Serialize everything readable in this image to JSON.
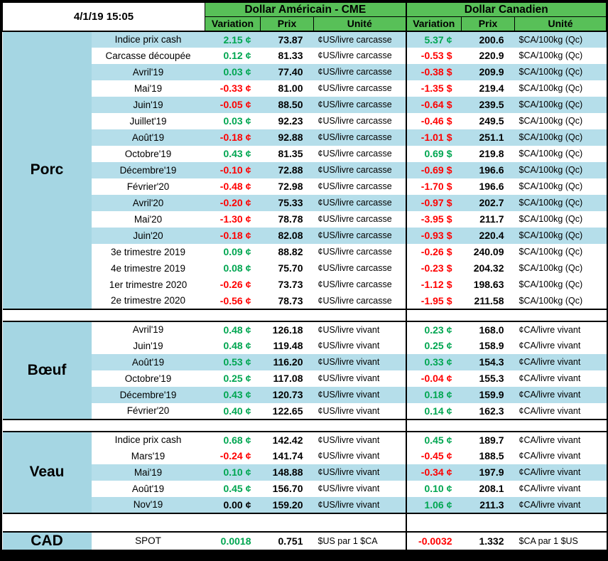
{
  "meta": {
    "timestamp": "4/1/19 15:05"
  },
  "header": {
    "us_title": "Dollar Américain - CME",
    "ca_title": "Dollar Canadien",
    "col_variation": "Variation",
    "col_prix": "Prix",
    "col_unite": "Unité"
  },
  "colors": {
    "header_green": "#58C058",
    "section_blue": "#A5D6E3",
    "stripe_blue": "#B5DEEA",
    "positive_green": "#00A651",
    "negative_red": "#FF0000"
  },
  "sections": [
    {
      "name": "Porc",
      "rows": [
        {
          "label": "Indice prix cash",
          "us_var": "2.15",
          "us_sym": "¢",
          "us_prix": "73.87",
          "us_unit": "¢US/livre carcasse",
          "ca_var": "5.37",
          "ca_sym": "¢",
          "ca_prix": "200.6",
          "ca_unit": "$CA/100kg (Qc)",
          "shaded": true
        },
        {
          "label": "Carcasse découpée",
          "us_var": "0.12",
          "us_sym": "¢",
          "us_prix": "81.33",
          "us_unit": "¢US/livre carcasse",
          "ca_var": "-0.53",
          "ca_sym": "$",
          "ca_prix": "220.9",
          "ca_unit": "$CA/100kg (Qc)",
          "shaded": false
        },
        {
          "label": "Avril'19",
          "us_var": "0.03",
          "us_sym": "¢",
          "us_prix": "77.40",
          "us_unit": "¢US/livre carcasse",
          "ca_var": "-0.38",
          "ca_sym": "$",
          "ca_prix": "209.9",
          "ca_unit": "$CA/100kg (Qc)",
          "shaded": true
        },
        {
          "label": "Mai'19",
          "us_var": "-0.33",
          "us_sym": "¢",
          "us_prix": "81.00",
          "us_unit": "¢US/livre carcasse",
          "ca_var": "-1.35",
          "ca_sym": "$",
          "ca_prix": "219.4",
          "ca_unit": "$CA/100kg (Qc)",
          "shaded": false
        },
        {
          "label": "Juin'19",
          "us_var": "-0.05",
          "us_sym": "¢",
          "us_prix": "88.50",
          "us_unit": "¢US/livre carcasse",
          "ca_var": "-0.64",
          "ca_sym": "$",
          "ca_prix": "239.5",
          "ca_unit": "$CA/100kg (Qc)",
          "shaded": true
        },
        {
          "label": "Juillet'19",
          "us_var": "0.03",
          "us_sym": "¢",
          "us_prix": "92.23",
          "us_unit": "¢US/livre carcasse",
          "ca_var": "-0.46",
          "ca_sym": "$",
          "ca_prix": "249.5",
          "ca_unit": "$CA/100kg (Qc)",
          "shaded": false
        },
        {
          "label": "Août'19",
          "us_var": "-0.18",
          "us_sym": "¢",
          "us_prix": "92.88",
          "us_unit": "¢US/livre carcasse",
          "ca_var": "-1.01",
          "ca_sym": "$",
          "ca_prix": "251.1",
          "ca_unit": "$CA/100kg (Qc)",
          "shaded": true
        },
        {
          "label": "Octobre'19",
          "us_var": "0.43",
          "us_sym": "¢",
          "us_prix": "81.35",
          "us_unit": "¢US/livre carcasse",
          "ca_var": "0.69",
          "ca_sym": "$",
          "ca_prix": "219.8",
          "ca_unit": "$CA/100kg (Qc)",
          "shaded": false
        },
        {
          "label": "Décembre'19",
          "us_var": "-0.10",
          "us_sym": "¢",
          "us_prix": "72.88",
          "us_unit": "¢US/livre carcasse",
          "ca_var": "-0.69",
          "ca_sym": "$",
          "ca_prix": "196.6",
          "ca_unit": "$CA/100kg (Qc)",
          "shaded": true
        },
        {
          "label": "Février'20",
          "us_var": "-0.48",
          "us_sym": "¢",
          "us_prix": "72.98",
          "us_unit": "¢US/livre carcasse",
          "ca_var": "-1.70",
          "ca_sym": "$",
          "ca_prix": "196.6",
          "ca_unit": "$CA/100kg (Qc)",
          "shaded": false
        },
        {
          "label": "Avril'20",
          "us_var": "-0.20",
          "us_sym": "¢",
          "us_prix": "75.33",
          "us_unit": "¢US/livre carcasse",
          "ca_var": "-0.97",
          "ca_sym": "$",
          "ca_prix": "202.7",
          "ca_unit": "$CA/100kg (Qc)",
          "shaded": true
        },
        {
          "label": "Mai'20",
          "us_var": "-1.30",
          "us_sym": "¢",
          "us_prix": "78.78",
          "us_unit": "¢US/livre carcasse",
          "ca_var": "-3.95",
          "ca_sym": "$",
          "ca_prix": "211.7",
          "ca_unit": "$CA/100kg (Qc)",
          "shaded": false
        },
        {
          "label": "Juin'20",
          "us_var": "-0.18",
          "us_sym": "¢",
          "us_prix": "82.08",
          "us_unit": "¢US/livre carcasse",
          "ca_var": "-0.93",
          "ca_sym": "$",
          "ca_prix": "220.4",
          "ca_unit": "$CA/100kg (Qc)",
          "shaded": true
        },
        {
          "label": "3e trimestre 2019",
          "us_var": "0.09",
          "us_sym": "¢",
          "us_prix": "88.82",
          "us_unit": "¢US/livre carcasse",
          "ca_var": "-0.26",
          "ca_sym": "$",
          "ca_prix": "240.09",
          "ca_unit": "$CA/100kg (Qc)",
          "shaded": false
        },
        {
          "label": "4e trimestre 2019",
          "us_var": "0.08",
          "us_sym": "¢",
          "us_prix": "75.70",
          "us_unit": "¢US/livre carcasse",
          "ca_var": "-0.23",
          "ca_sym": "$",
          "ca_prix": "204.32",
          "ca_unit": "$CA/100kg (Qc)",
          "shaded": false
        },
        {
          "label": "1er trimestre 2020",
          "us_var": "-0.26",
          "us_sym": "¢",
          "us_prix": "73.73",
          "us_unit": "¢US/livre carcasse",
          "ca_var": "-1.12",
          "ca_sym": "$",
          "ca_prix": "198.63",
          "ca_unit": "$CA/100kg (Qc)",
          "shaded": false
        },
        {
          "label": "2e trimestre 2020",
          "us_var": "-0.56",
          "us_sym": "¢",
          "us_prix": "78.73",
          "us_unit": "¢US/livre carcasse",
          "ca_var": "-1.95",
          "ca_sym": "$",
          "ca_prix": "211.58",
          "ca_unit": "$CA/100kg (Qc)",
          "shaded": false
        }
      ]
    },
    {
      "name": "Bœuf",
      "rows": [
        {
          "label": "Avril'19",
          "us_var": "0.48",
          "us_sym": "¢",
          "us_prix": "126.18",
          "us_unit": "¢US/livre vivant",
          "ca_var": "0.23",
          "ca_sym": "¢",
          "ca_prix": "168.0",
          "ca_unit": "¢CA/livre vivant",
          "shaded": false
        },
        {
          "label": "Juin'19",
          "us_var": "0.48",
          "us_sym": "¢",
          "us_prix": "119.48",
          "us_unit": "¢US/livre vivant",
          "ca_var": "0.25",
          "ca_sym": "¢",
          "ca_prix": "158.9",
          "ca_unit": "¢CA/livre vivant",
          "shaded": false
        },
        {
          "label": "Août'19",
          "us_var": "0.53",
          "us_sym": "¢",
          "us_prix": "116.20",
          "us_unit": "¢US/livre vivant",
          "ca_var": "0.33",
          "ca_sym": "¢",
          "ca_prix": "154.3",
          "ca_unit": "¢CA/livre vivant",
          "shaded": true
        },
        {
          "label": "Octobre'19",
          "us_var": "0.25",
          "us_sym": "¢",
          "us_prix": "117.08",
          "us_unit": "¢US/livre vivant",
          "ca_var": "-0.04",
          "ca_sym": "¢",
          "ca_prix": "155.3",
          "ca_unit": "¢CA/livre vivant",
          "shaded": false
        },
        {
          "label": "Décembre'19",
          "us_var": "0.43",
          "us_sym": "¢",
          "us_prix": "120.73",
          "us_unit": "¢US/livre vivant",
          "ca_var": "0.18",
          "ca_sym": "¢",
          "ca_prix": "159.9",
          "ca_unit": "¢CA/livre vivant",
          "shaded": true
        },
        {
          "label": "Février'20",
          "us_var": "0.40",
          "us_sym": "¢",
          "us_prix": "122.65",
          "us_unit": "¢US/livre vivant",
          "ca_var": "0.14",
          "ca_sym": "¢",
          "ca_prix": "162.3",
          "ca_unit": "¢CA/livre vivant",
          "shaded": false
        }
      ]
    },
    {
      "name": "Veau",
      "rows": [
        {
          "label": "Indice prix cash",
          "us_var": "0.68",
          "us_sym": "¢",
          "us_prix": "142.42",
          "us_unit": "¢US/livre vivant",
          "ca_var": "0.45",
          "ca_sym": "¢",
          "ca_prix": "189.7",
          "ca_unit": "¢CA/livre vivant",
          "shaded": false
        },
        {
          "label": "Mars'19",
          "us_var": "-0.24",
          "us_sym": "¢",
          "us_prix": "141.74",
          "us_unit": "¢US/livre vivant",
          "ca_var": "-0.45",
          "ca_sym": "¢",
          "ca_prix": "188.5",
          "ca_unit": "¢CA/livre vivant",
          "shaded": false
        },
        {
          "label": "Mai'19",
          "us_var": "0.10",
          "us_sym": "¢",
          "us_prix": "148.88",
          "us_unit": "¢US/livre vivant",
          "ca_var": "-0.34",
          "ca_sym": "¢",
          "ca_prix": "197.9",
          "ca_unit": "¢CA/livre vivant",
          "shaded": true
        },
        {
          "label": "Août'19",
          "us_var": "0.45",
          "us_sym": "¢",
          "us_prix": "156.70",
          "us_unit": "¢US/livre vivant",
          "ca_var": "0.10",
          "ca_sym": "¢",
          "ca_prix": "208.1",
          "ca_unit": "¢CA/livre vivant",
          "shaded": false
        },
        {
          "label": "Nov'19",
          "us_var": "0.00",
          "us_sym": "¢",
          "us_prix": "159.20",
          "us_unit": "¢US/livre vivant",
          "ca_var": "1.06",
          "ca_sym": "¢",
          "ca_prix": "211.3",
          "ca_unit": "¢CA/livre vivant",
          "shaded": true
        }
      ]
    },
    {
      "name": "CAD",
      "rows": [
        {
          "label": "SPOT",
          "us_var": "0.0018",
          "us_sym": "",
          "us_prix": "0.751",
          "us_unit": "$US par 1 $CA",
          "ca_var": "-0.0032",
          "ca_sym": "",
          "ca_prix": "1.332",
          "ca_unit": "$CA par 1 $US",
          "shaded": false
        }
      ]
    }
  ]
}
